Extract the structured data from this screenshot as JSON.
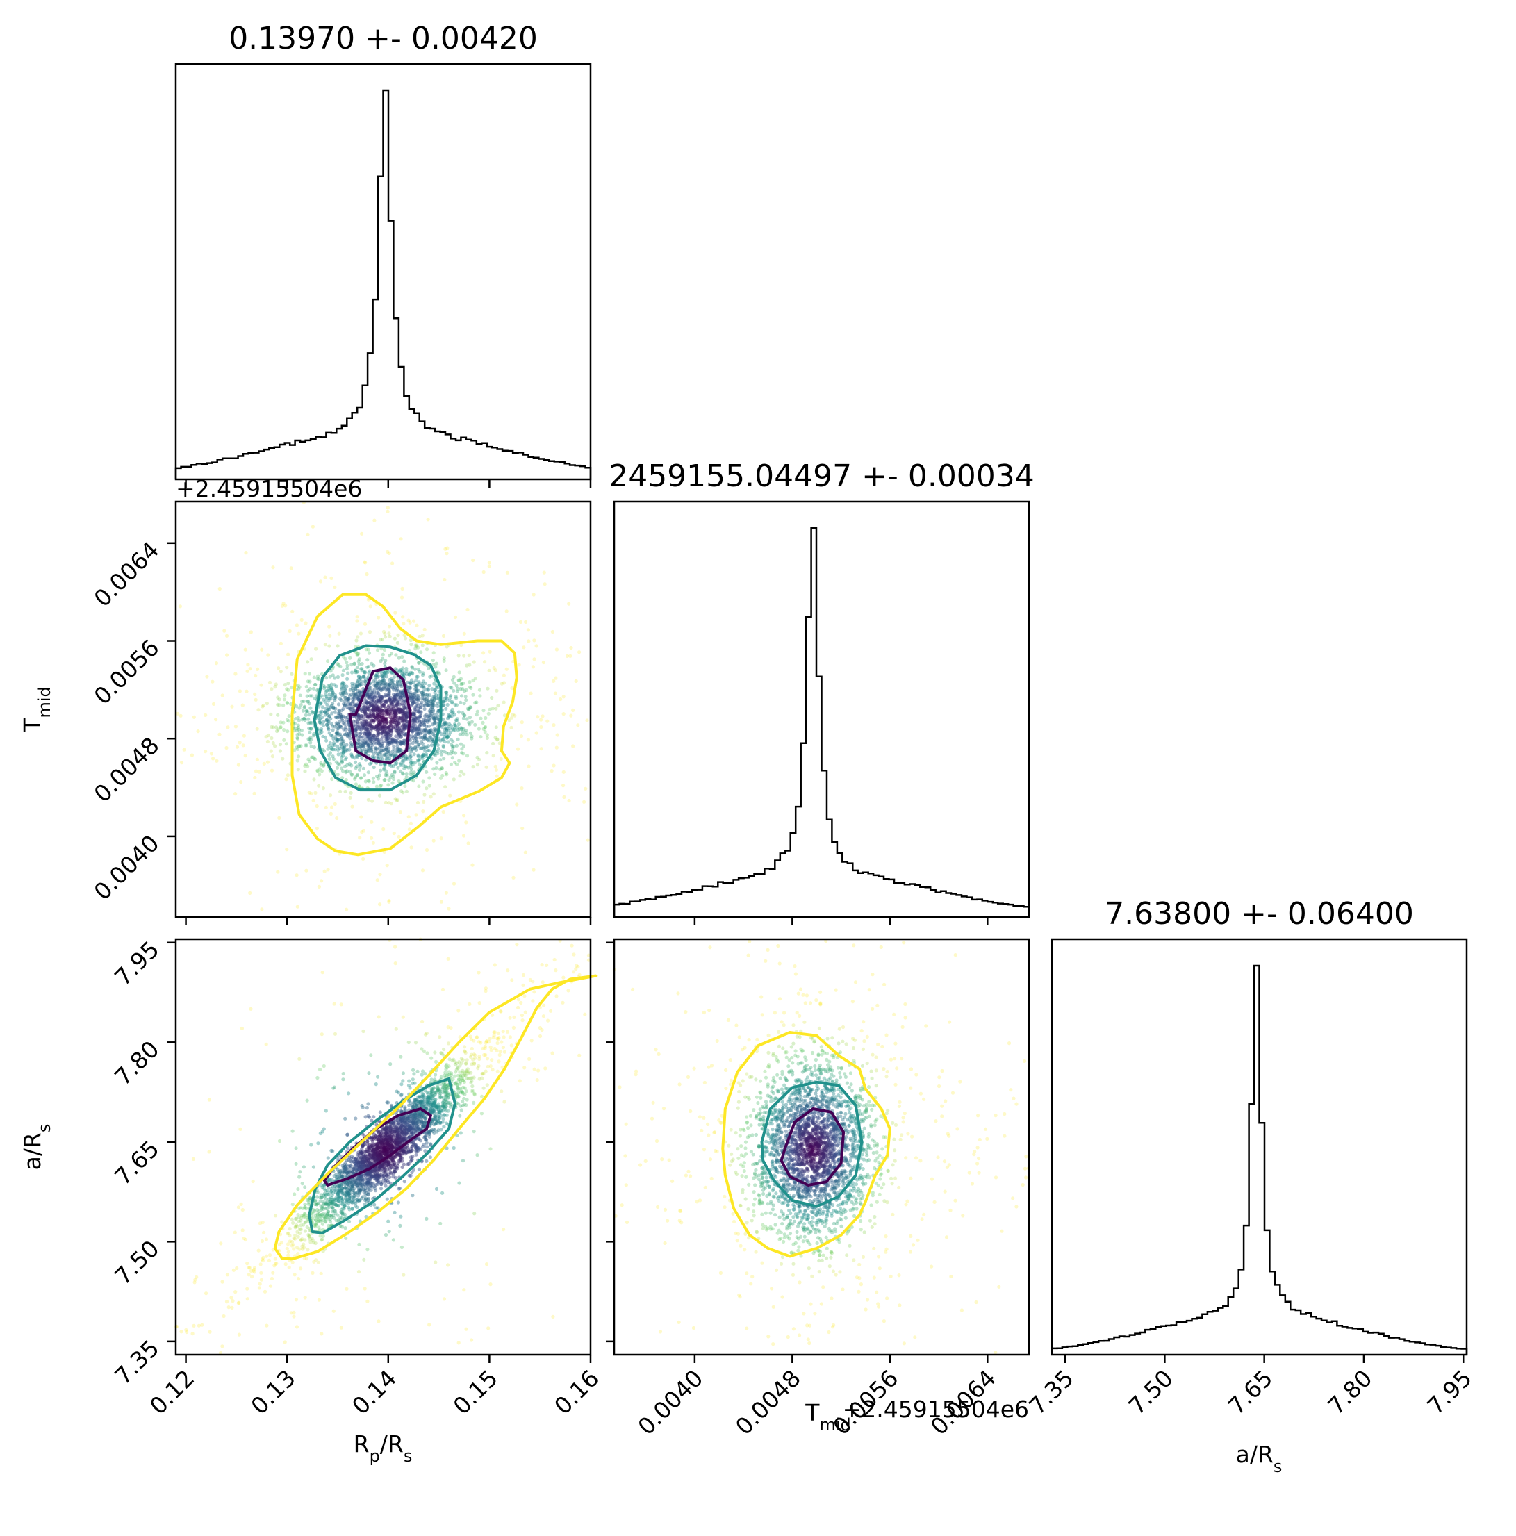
{
  "chart_data": {
    "type": "corner",
    "parameters": [
      {
        "name": "R_p/R_s",
        "label_main": "R",
        "label_sub1": "p",
        "label_mid": "/R",
        "label_sub2": "s",
        "median": 0.1397,
        "sigma": 0.0042,
        "title": "0.13970 +- 0.00420",
        "range": [
          0.119,
          0.16
        ],
        "ticks": [
          0.12,
          0.13,
          0.14,
          0.15,
          0.16
        ],
        "tick_labels": [
          "0.12",
          "0.13",
          "0.14",
          "0.15",
          "0.16"
        ]
      },
      {
        "name": "T_mid",
        "label_main": "T",
        "label_sub1": "mid",
        "median": 2459155.04497,
        "sigma": 0.00034,
        "title": "2459155.04497 +- 0.00034",
        "offset_text": "+2.45915504e6",
        "range": [
          0.00334,
          0.00674
        ],
        "ticks": [
          0.004,
          0.0048,
          0.0056,
          0.0064
        ],
        "tick_labels": [
          "0.0040",
          "0.0048",
          "0.0056",
          "0.0064"
        ]
      },
      {
        "name": "a/R_s",
        "label_main": "a/R",
        "label_sub1": "s",
        "median": 7.638,
        "sigma": 0.064,
        "title": "7.63800 +- 0.06400",
        "range": [
          7.33,
          7.955
        ],
        "ticks": [
          7.35,
          7.5,
          7.65,
          7.8,
          7.95
        ],
        "tick_labels": [
          "7.35",
          "7.50",
          "7.65",
          "7.80",
          "7.95"
        ]
      }
    ],
    "histograms": [
      {
        "param": "R_p/R_s",
        "bins": 80,
        "peak": 0.1397,
        "peak_count": 1000
      },
      {
        "param": "T_mid",
        "bins": 80,
        "peak": 0.00497,
        "peak_count": 1000
      },
      {
        "param": "a/R_s",
        "bins": 80,
        "peak": 7.638,
        "peak_count": 1000
      }
    ],
    "scatter_colormap": "viridis",
    "contours": [
      {
        "panel": "R_p/R_s vs T_mid",
        "levels": [
          {
            "color": "#440154",
            "x": [
              0.1368,
              0.1385,
              0.1402,
              0.1415,
              0.1422,
              0.1418,
              0.1402,
              0.1385,
              0.1368,
              0.1362
            ],
            "y": [
              0.005,
              0.00535,
              0.00538,
              0.00528,
              0.005,
              0.0047,
              0.0046,
              0.00462,
              0.0047,
              0.005
            ]
          },
          {
            "color": "#21918c",
            "x": [
              0.1327,
              0.1335,
              0.1352,
              0.1378,
              0.1402,
              0.1425,
              0.1442,
              0.1452,
              0.1452,
              0.1445,
              0.1428,
              0.1402,
              0.1372,
              0.1348,
              0.1333
            ],
            "y": [
              0.00495,
              0.0053,
              0.00548,
              0.00556,
              0.00555,
              0.00549,
              0.0054,
              0.00522,
              0.00495,
              0.0047,
              0.0045,
              0.00438,
              0.00438,
              0.00448,
              0.0047
            ]
          },
          {
            "color": "#fde725",
            "x": [
              0.1305,
              0.131,
              0.133,
              0.1355,
              0.1378,
              0.1395,
              0.1412,
              0.1428,
              0.1452,
              0.1488,
              0.1512,
              0.1525,
              0.1527,
              0.1523,
              0.1514,
              0.1512,
              0.152,
              0.1512,
              0.149,
              0.1452,
              0.143,
              0.1402,
              0.137,
              0.1348,
              0.133,
              0.1312,
              0.1305
            ],
            "y": [
              0.005,
              0.00545,
              0.0058,
              0.00598,
              0.00598,
              0.00588,
              0.0057,
              0.0056,
              0.00557,
              0.0056,
              0.0056,
              0.0055,
              0.0053,
              0.0051,
              0.0049,
              0.0047,
              0.0046,
              0.00448,
              0.00437,
              0.00424,
              0.00408,
              0.0039,
              0.00385,
              0.00388,
              0.00398,
              0.00418,
              0.0045
            ]
          }
        ]
      },
      {
        "panel": "R_p/R_s vs a/R_s",
        "levels": [
          {
            "color": "#440154",
            "x": [
              0.134,
              0.136,
              0.1382,
              0.1402,
              0.1422,
              0.1438,
              0.1442,
              0.1432,
              0.141,
              0.1388,
              0.1365,
              0.1345,
              0.1337
            ],
            "y": [
              7.585,
              7.595,
              7.61,
              7.63,
              7.653,
              7.67,
              7.69,
              7.7,
              7.69,
              7.67,
              7.64,
              7.61,
              7.592
            ]
          },
          {
            "color": "#21918c",
            "x": [
              0.1325,
              0.1335,
              0.1358,
              0.1385,
              0.1412,
              0.1438,
              0.146,
              0.1466,
              0.146,
              0.144,
              0.1415,
              0.1388,
              0.1362,
              0.134,
              0.1328,
              0.1322
            ],
            "y": [
              7.515,
              7.513,
              7.533,
              7.56,
              7.595,
              7.632,
              7.67,
              7.708,
              7.745,
              7.735,
              7.712,
              7.682,
              7.65,
              7.615,
              7.58,
              7.54
            ]
          },
          {
            "color": "#fde725",
            "x": [
              0.1295,
              0.1305,
              0.133,
              0.136,
              0.139,
              0.1418,
              0.1445,
              0.147,
              0.1495,
              0.1515,
              0.1532,
              0.1547,
              0.1562,
              0.158,
              0.1605,
              0.157,
              0.154,
              0.15,
              0.147,
              0.144,
              0.141,
              0.1375,
              0.134,
              0.131,
              0.1292,
              0.1288
            ],
            "y": [
              7.475,
              7.474,
              7.485,
              7.513,
              7.545,
              7.58,
              7.623,
              7.67,
              7.715,
              7.76,
              7.808,
              7.852,
              7.88,
              7.895,
              7.9,
              7.89,
              7.88,
              7.845,
              7.8,
              7.75,
              7.702,
              7.652,
              7.602,
              7.555,
              7.515,
              7.49
            ]
          }
        ]
      },
      {
        "panel": "T_mid vs a/R_s",
        "levels": [
          {
            "color": "#440154",
            "x": [
              0.00474,
              0.00482,
              0.00497,
              0.00512,
              0.00522,
              0.0052,
              0.00508,
              0.00493,
              0.00478,
              0.00471
            ],
            "y": [
              7.64,
              7.68,
              7.7,
              7.695,
              7.665,
              7.618,
              7.59,
              7.585,
              7.598,
              7.622
            ]
          },
          {
            "color": "#21918c",
            "x": [
              0.00455,
              0.00462,
              0.0048,
              0.005,
              0.00518,
              0.00532,
              0.00537,
              0.00532,
              0.00518,
              0.005,
              0.0048,
              0.00465,
              0.00456
            ],
            "y": [
              7.65,
              7.7,
              7.732,
              7.74,
              7.735,
              7.705,
              7.65,
              7.6,
              7.568,
              7.553,
              7.562,
              7.592,
              7.622
            ]
          },
          {
            "color": "#fde725",
            "x": [
              0.00423,
              0.00425,
              0.00435,
              0.00452,
              0.00478,
              0.005,
              0.00518,
              0.00535,
              0.0054,
              0.00553,
              0.0056,
              0.00558,
              0.00548,
              0.0054,
              0.00535,
              0.0052,
              0.005,
              0.00478,
              0.0046,
              0.00445,
              0.00432,
              0.00425
            ],
            "y": [
              7.64,
              7.7,
              7.755,
              7.795,
              7.815,
              7.81,
              7.78,
              7.76,
              7.73,
              7.7,
              7.67,
              7.63,
              7.6,
              7.56,
              7.54,
              7.51,
              7.49,
              7.478,
              7.49,
              7.51,
              7.55,
              7.6
            ]
          }
        ]
      }
    ]
  }
}
